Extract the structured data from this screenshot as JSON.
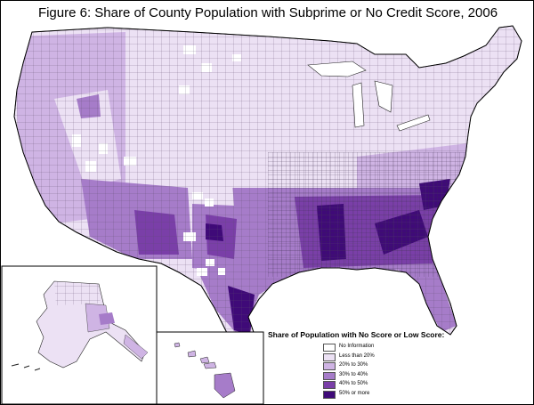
{
  "title": "Figure 6: Share of County Population with Subprime or No Credit Score, 2006",
  "legend": {
    "title": "Share of Population with No Score or Low Score:",
    "items": [
      {
        "label": "No Information",
        "color": "#ffffff"
      },
      {
        "label": "Less than 20%",
        "color": "#ece1f4"
      },
      {
        "label": "20% to 30%",
        "color": "#cfb4e4"
      },
      {
        "label": "30% to 40%",
        "color": "#a67cc9"
      },
      {
        "label": "40% to 50%",
        "color": "#7a3fa8"
      },
      {
        "label": "50% or more",
        "color": "#3f0a78"
      }
    ]
  },
  "colors": {
    "border": "#000000",
    "county_lines": "#5a4a6a"
  }
}
